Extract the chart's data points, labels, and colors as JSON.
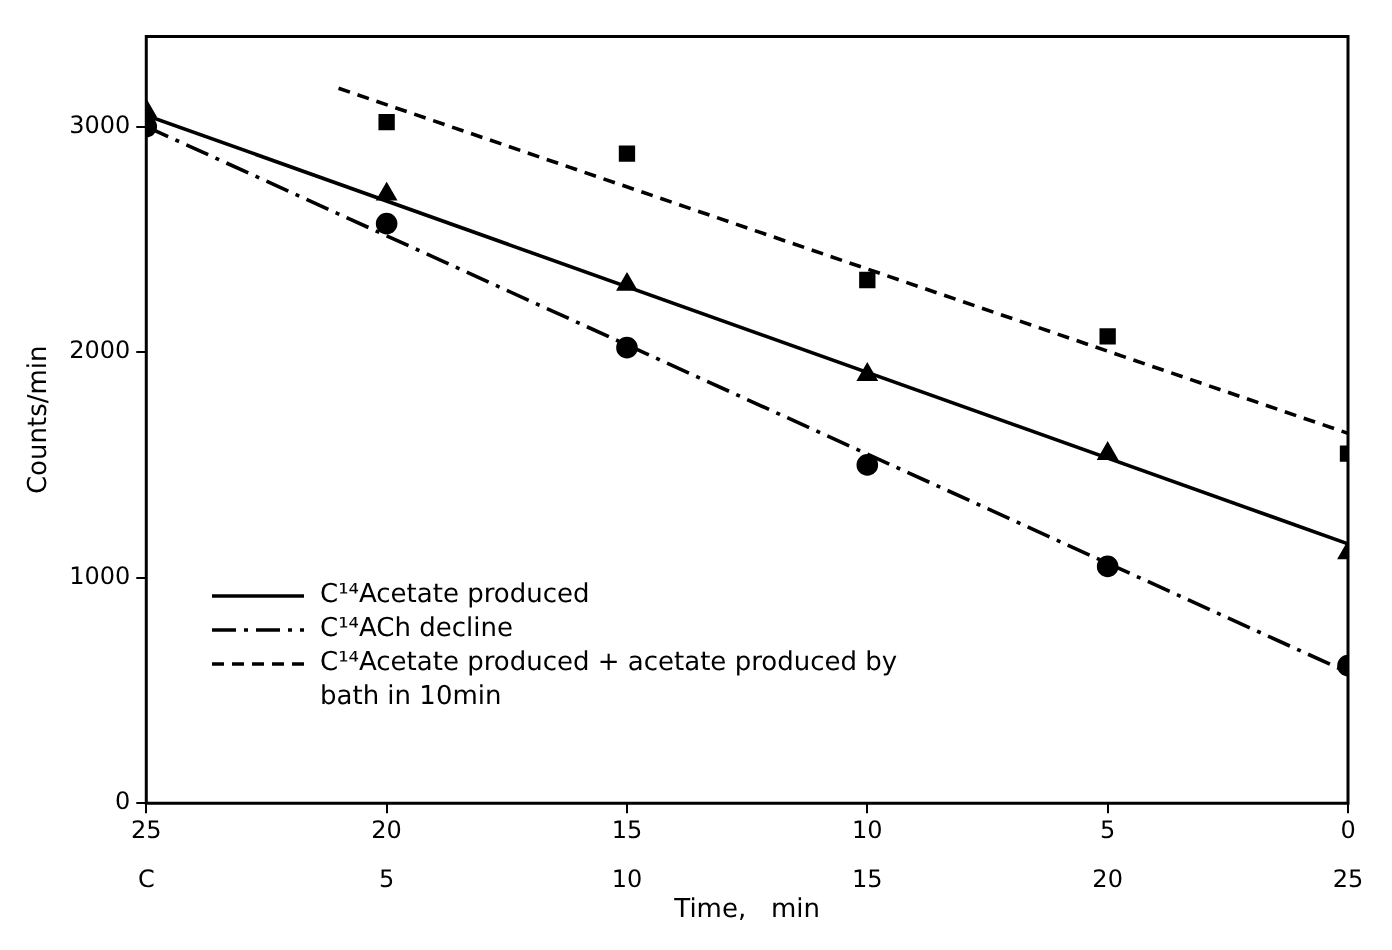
{
  "chart_data": {
    "type": "line",
    "xlabel": "Time,   min",
    "ylabel": "Counts/min",
    "xlim": [
      25,
      0
    ],
    "xticks": [
      25,
      20,
      15,
      10,
      5,
      0
    ],
    "x2lim": [
      0,
      25
    ],
    "x2ticks": [
      {
        "value": 0,
        "label": "C"
      },
      5,
      10,
      15,
      20,
      25
    ],
    "ylim": [
      0,
      3400
    ],
    "yticks": [
      0,
      1000,
      2000,
      3000
    ],
    "grid": false,
    "legend": "bottom left",
    "series": [
      {
        "name": "C¹⁴Acetate produced",
        "type": "line",
        "color": "#000000",
        "line_style": "solid",
        "marker": "none",
        "x": [
          25,
          0
        ],
        "values": [
          3050,
          1150
        ]
      },
      {
        "name": "C¹⁴ACh decline",
        "type": "line",
        "color": "#000000",
        "line_style": "dashdot",
        "marker": "none",
        "x": [
          25,
          0
        ],
        "values": [
          3000,
          580
        ]
      },
      {
        "name": "C¹⁴Acetate produced + acetate produced by bath in 10min",
        "type": "line",
        "color": "#000000",
        "line_style": "dashed",
        "marker": "none",
        "x": [
          21,
          0
        ],
        "values": [
          3170,
          1640
        ]
      },
      {
        "type": "scatter",
        "color": "#000000",
        "marker": "triangle",
        "x": [
          25,
          20,
          15,
          10,
          5,
          0
        ],
        "values": [
          3070,
          2700,
          2300,
          1900,
          1550,
          1110
        ]
      },
      {
        "type": "scatter",
        "color": "#000000",
        "marker": "circle",
        "x": [
          25,
          20,
          15,
          10,
          5,
          0
        ],
        "values": [
          3000,
          2570,
          2020,
          1500,
          1050,
          610
        ]
      },
      {
        "type": "scatter",
        "color": "#000000",
        "marker": "square",
        "x": [
          20,
          15,
          10,
          5,
          0
        ],
        "values": [
          3020,
          2880,
          2320,
          2070,
          1550
        ]
      }
    ]
  }
}
